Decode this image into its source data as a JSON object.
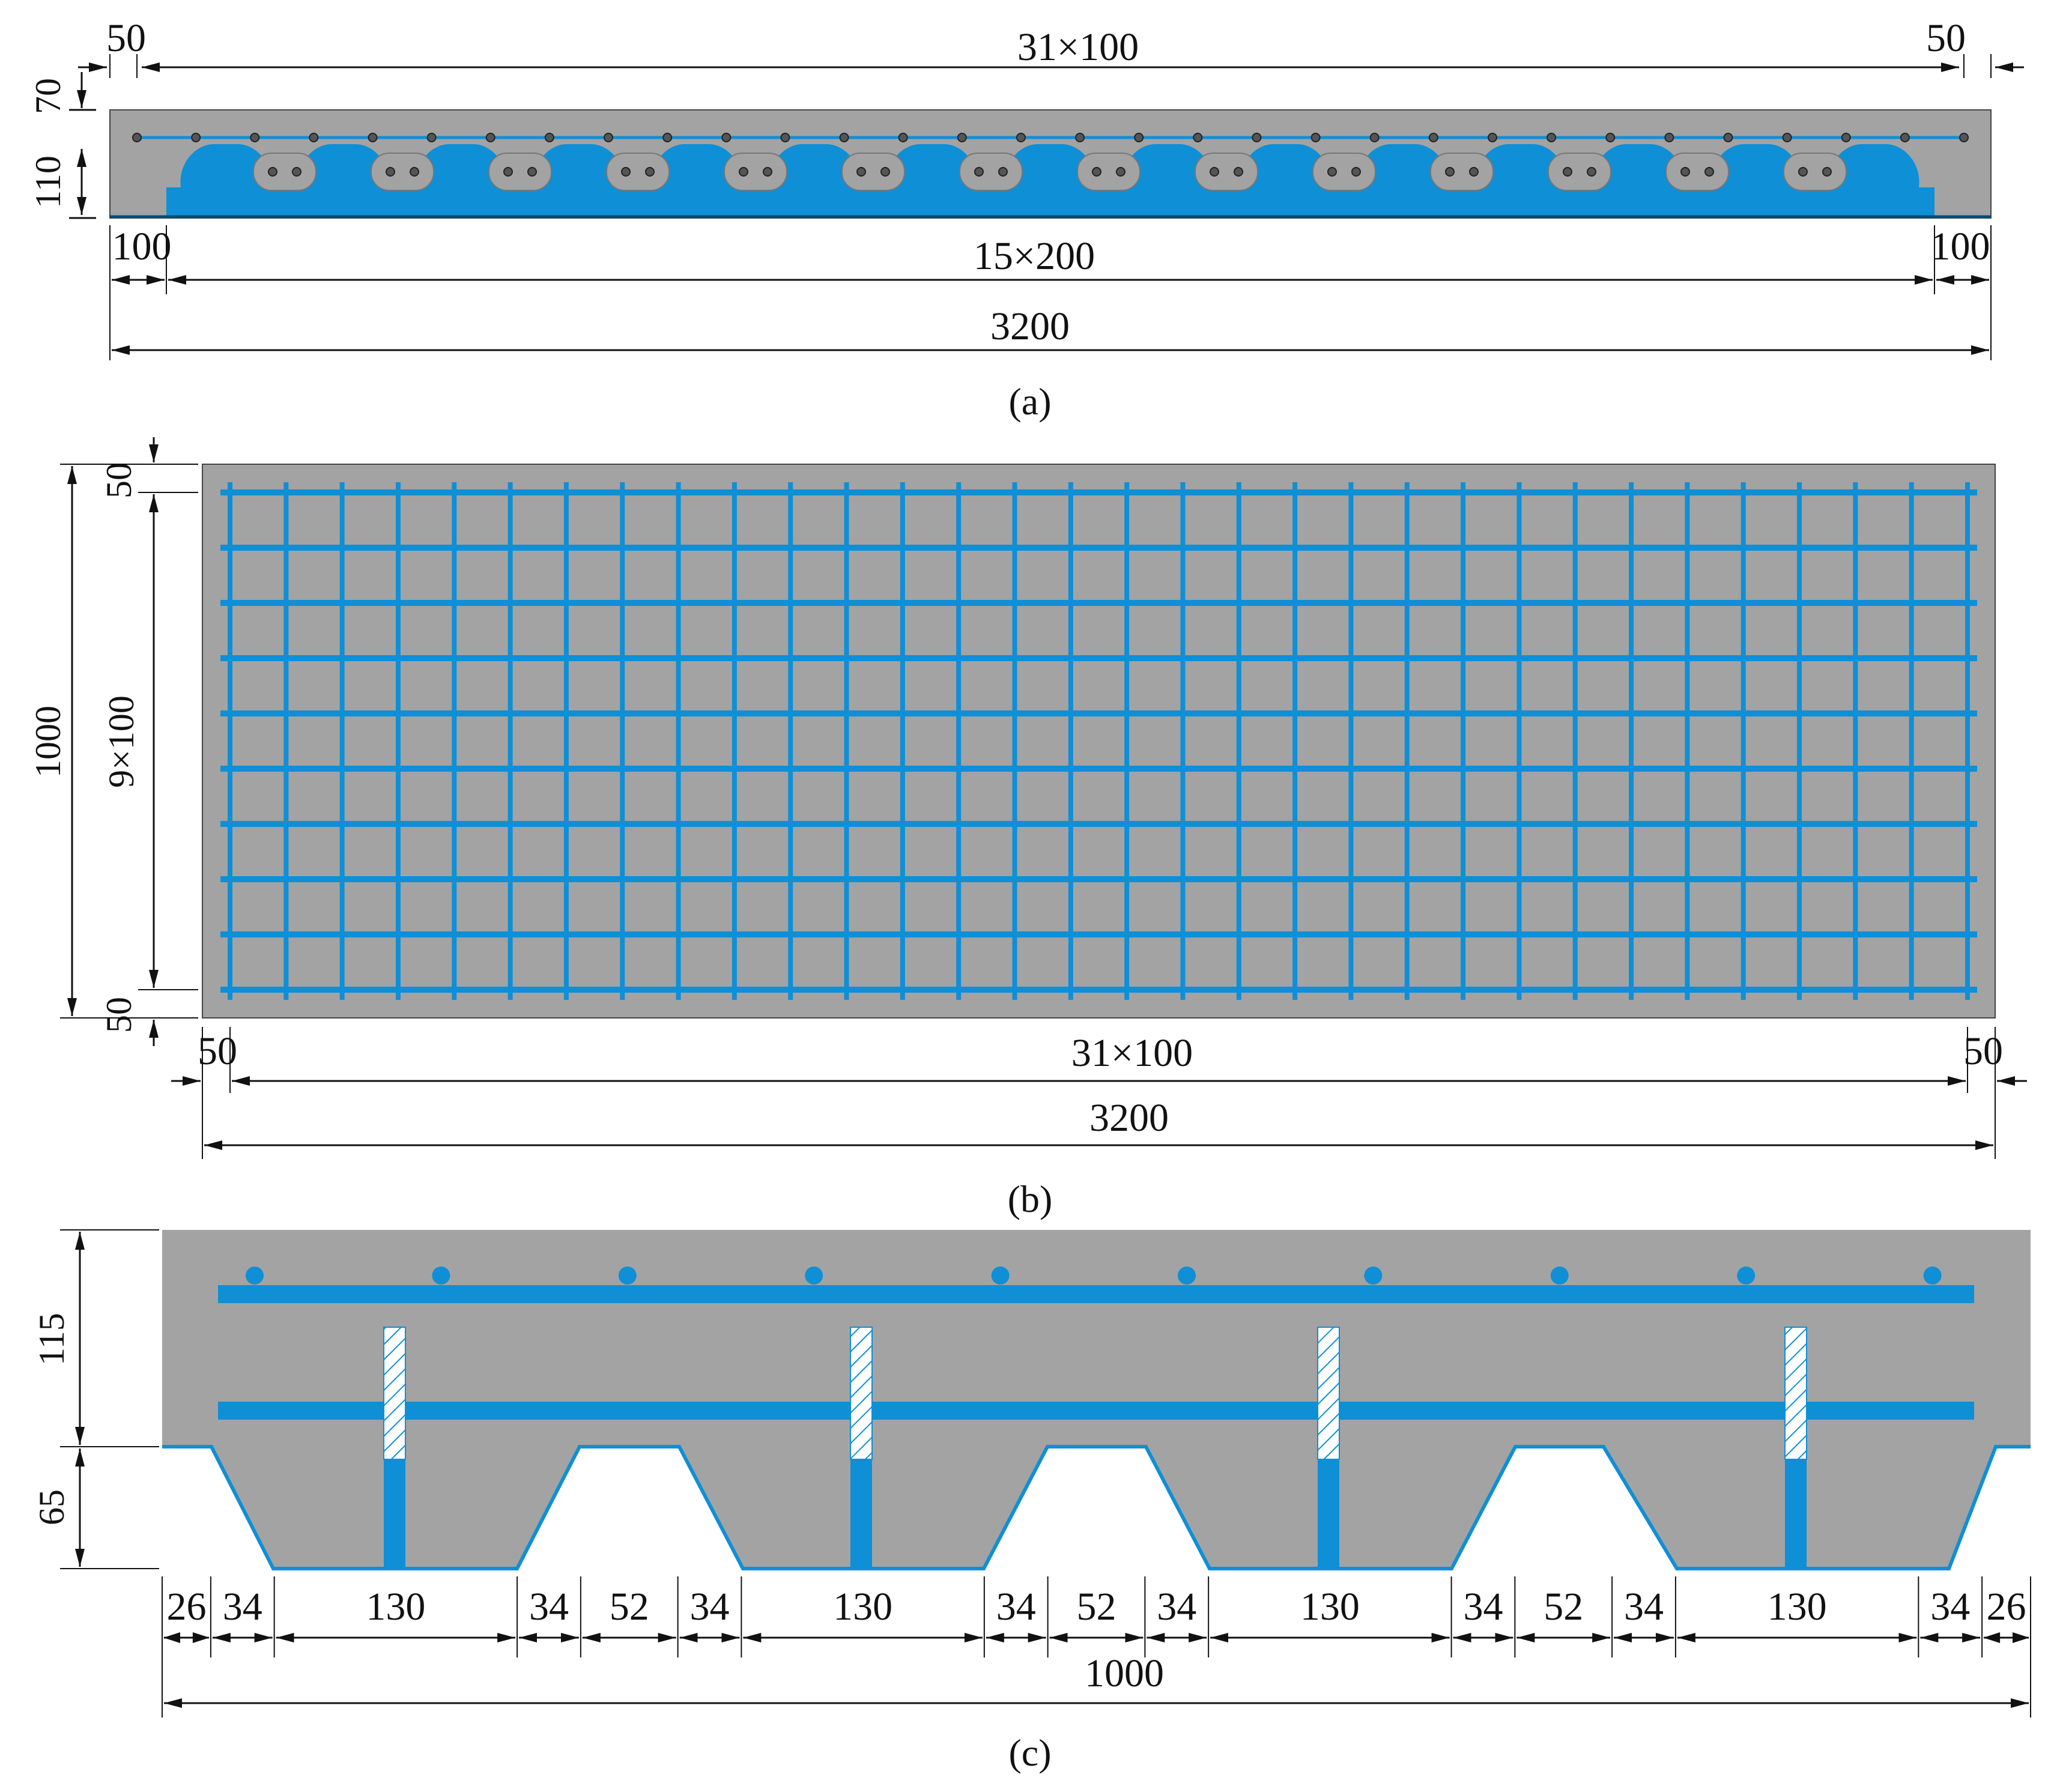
{
  "colors": {
    "concrete": "#a3a3a3",
    "steel": "#0f8fd6",
    "dimension": "#111111",
    "background": "#ffffff"
  },
  "panel_a": {
    "caption": "(a)",
    "top": {
      "left": "50",
      "middle": "31×100",
      "right": "50"
    },
    "side": {
      "upper": "70",
      "lower": "110"
    },
    "bottom": {
      "left": "100",
      "middle": "15×200",
      "right": "100",
      "overall": "3200"
    }
  },
  "panel_b": {
    "caption": "(b)",
    "side": {
      "top": "50",
      "middle": "9×100",
      "bottom": "50",
      "overall": "1000"
    },
    "bottom": {
      "left": "50",
      "middle": "31×100",
      "right": "50",
      "overall": "3200"
    }
  },
  "panel_c": {
    "caption": "(c)",
    "side": {
      "upper": "115",
      "lower": "65"
    },
    "segments": [
      "26",
      "34",
      "130",
      "34",
      "52",
      "34",
      "130",
      "34",
      "52",
      "34",
      "130",
      "34",
      "52",
      "34",
      "130",
      "34",
      "26"
    ],
    "overall": "1000"
  }
}
